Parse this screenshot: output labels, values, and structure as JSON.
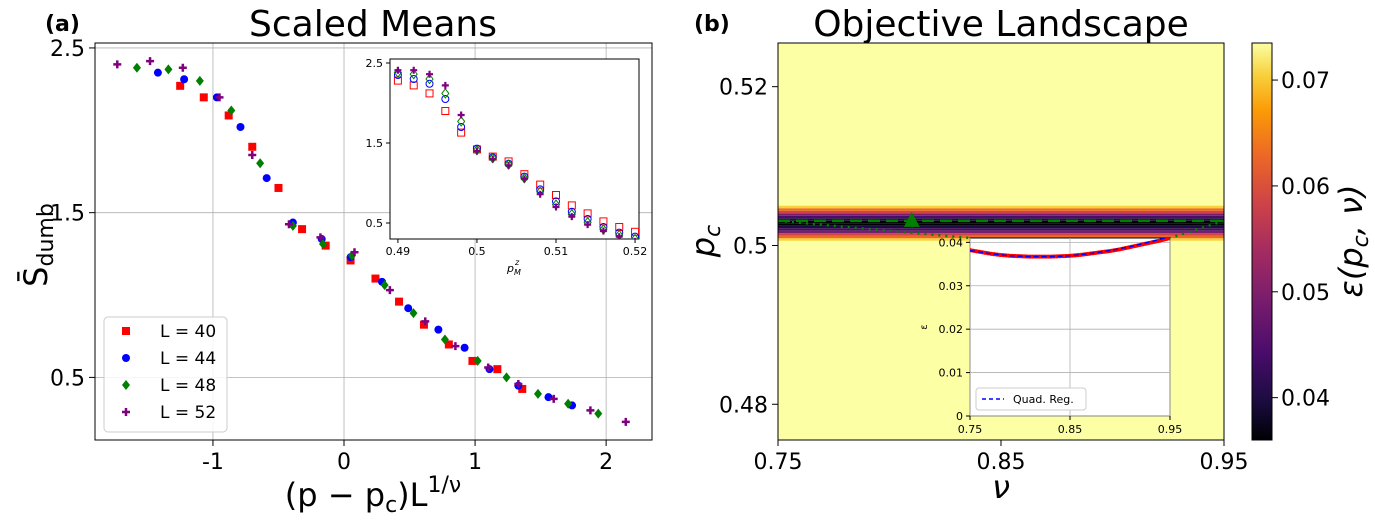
{
  "panel_a": {
    "label": "(a)",
    "title": "Scaled Means",
    "ylabel": "S̄",
    "ylabel_sub": "dumb",
    "xlabel_main": "(p − p",
    "xlabel_sub": "c",
    "xlabel_tail": ")L",
    "xlabel_sup": "1/ν"
  },
  "panel_b": {
    "label": "(b)",
    "title": "Objective Landscape",
    "xlabel": "ν",
    "ylabel_main": "p",
    "ylabel_sub": "c",
    "colorbar_label": "ε(p",
    "colorbar_label_sub": "c",
    "colorbar_label_tail": ", ν)"
  },
  "chart_data": [
    {
      "type": "scatter",
      "title": "Scaled Means",
      "xlabel": "(p − p_c)L^{1/ν}",
      "ylabel": "S̄_dumb",
      "xlim": [
        -1.9,
        2.35
      ],
      "ylim": [
        0.12,
        2.53
      ],
      "xticks": [
        -1,
        0,
        1,
        2
      ],
      "xtick_labels": [
        "-1",
        "0",
        "1",
        "2"
      ],
      "yticks": [
        0.5,
        1.5,
        2.5
      ],
      "ytick_labels": [
        "0.5",
        "1.5",
        "2.5"
      ],
      "grid": true,
      "legend_position": "lower-left",
      "series": [
        {
          "name": "L = 40",
          "color": "#ff0000",
          "marker": "square",
          "points": [
            [
              -1.25,
              2.27
            ],
            [
              -1.07,
              2.2
            ],
            [
              -0.88,
              2.09
            ],
            [
              -0.7,
              1.9
            ],
            [
              -0.5,
              1.65
            ],
            [
              -0.32,
              1.4
            ],
            [
              -0.14,
              1.3
            ],
            [
              0.05,
              1.21
            ],
            [
              0.24,
              1.1
            ],
            [
              0.42,
              0.96
            ],
            [
              0.61,
              0.82
            ],
            [
              0.8,
              0.7
            ],
            [
              0.98,
              0.6
            ],
            [
              1.17,
              0.55
            ],
            [
              1.36,
              0.43
            ]
          ]
        },
        {
          "name": "L = 44",
          "color": "#0000ff",
          "marker": "circle",
          "points": [
            [
              -1.42,
              2.35
            ],
            [
              -1.22,
              2.31
            ],
            [
              -0.97,
              2.2
            ],
            [
              -0.79,
              2.02
            ],
            [
              -0.59,
              1.71
            ],
            [
              -0.39,
              1.44
            ],
            [
              -0.17,
              1.34
            ],
            [
              0.05,
              1.23
            ],
            [
              0.29,
              1.08
            ],
            [
              0.49,
              0.92
            ],
            [
              0.72,
              0.79
            ],
            [
              0.92,
              0.68
            ],
            [
              1.11,
              0.55
            ],
            [
              1.33,
              0.45
            ],
            [
              1.56,
              0.38
            ],
            [
              1.74,
              0.33
            ]
          ]
        },
        {
          "name": "L = 48",
          "color": "#008000",
          "marker": "diamond",
          "points": [
            [
              -1.58,
              2.38
            ],
            [
              -1.34,
              2.37
            ],
            [
              -1.1,
              2.3
            ],
            [
              -0.86,
              2.12
            ],
            [
              -0.64,
              1.8
            ],
            [
              -0.39,
              1.42
            ],
            [
              -0.16,
              1.31
            ],
            [
              0.06,
              1.24
            ],
            [
              0.31,
              1.06
            ],
            [
              0.53,
              0.89
            ],
            [
              0.77,
              0.73
            ],
            [
              1.02,
              0.6
            ],
            [
              1.24,
              0.5
            ],
            [
              1.48,
              0.4
            ],
            [
              1.71,
              0.34
            ],
            [
              1.94,
              0.28
            ]
          ]
        },
        {
          "name": "L = 52",
          "color": "#800080",
          "marker": "plus",
          "points": [
            [
              -1.73,
              2.4
            ],
            [
              -1.48,
              2.42
            ],
            [
              -1.23,
              2.38
            ],
            [
              -0.95,
              2.2
            ],
            [
              -0.7,
              1.85
            ],
            [
              -0.42,
              1.43
            ],
            [
              -0.18,
              1.35
            ],
            [
              0.08,
              1.26
            ],
            [
              0.35,
              1.03
            ],
            [
              0.62,
              0.84
            ],
            [
              0.85,
              0.69
            ],
            [
              1.1,
              0.56
            ],
            [
              1.33,
              0.46
            ],
            [
              1.6,
              0.37
            ],
            [
              1.88,
              0.3
            ],
            [
              2.15,
              0.23
            ]
          ]
        }
      ]
    },
    {
      "type": "scatter",
      "role": "inset",
      "xlabel": "p_M^z",
      "xlim": [
        0.489,
        0.5205
      ],
      "ylim": [
        0.3,
        2.55
      ],
      "xticks": [
        0.49,
        0.5,
        0.51,
        0.52
      ],
      "xtick_labels": [
        "0.49",
        "0.5",
        "0.51",
        "0.52"
      ],
      "yticks": [
        0.5,
        1.5,
        2.5
      ],
      "ytick_labels": [
        "0.5",
        "1.5",
        "2.5"
      ],
      "grid": false,
      "series": [
        {
          "name": "",
          "color": "#ff0000",
          "marker": "square-open",
          "points": [
            [
              0.49,
              2.28
            ],
            [
              0.492,
              2.22
            ],
            [
              0.494,
              2.12
            ],
            [
              0.496,
              1.9
            ],
            [
              0.498,
              1.63
            ],
            [
              0.5,
              1.42
            ],
            [
              0.502,
              1.33
            ],
            [
              0.504,
              1.27
            ],
            [
              0.506,
              1.11
            ],
            [
              0.508,
              0.98
            ],
            [
              0.51,
              0.85
            ],
            [
              0.512,
              0.72
            ],
            [
              0.514,
              0.62
            ],
            [
              0.516,
              0.52
            ],
            [
              0.518,
              0.45
            ],
            [
              0.52,
              0.39
            ]
          ]
        },
        {
          "name": "",
          "color": "#0000ff",
          "marker": "circle-open",
          "points": [
            [
              0.49,
              2.35
            ],
            [
              0.492,
              2.3
            ],
            [
              0.494,
              2.24
            ],
            [
              0.496,
              2.05
            ],
            [
              0.498,
              1.7
            ],
            [
              0.5,
              1.43
            ],
            [
              0.502,
              1.32
            ],
            [
              0.504,
              1.24
            ],
            [
              0.506,
              1.08
            ],
            [
              0.508,
              0.92
            ],
            [
              0.51,
              0.77
            ],
            [
              0.512,
              0.64
            ],
            [
              0.514,
              0.55
            ],
            [
              0.516,
              0.45
            ],
            [
              0.518,
              0.38
            ],
            [
              0.52,
              0.33
            ]
          ]
        },
        {
          "name": "",
          "color": "#008000",
          "marker": "diamond-open",
          "points": [
            [
              0.49,
              2.38
            ],
            [
              0.492,
              2.36
            ],
            [
              0.494,
              2.3
            ],
            [
              0.496,
              2.12
            ],
            [
              0.498,
              1.77
            ],
            [
              0.5,
              1.41
            ],
            [
              0.502,
              1.31
            ],
            [
              0.504,
              1.23
            ],
            [
              0.506,
              1.06
            ],
            [
              0.508,
              0.89
            ],
            [
              0.51,
              0.73
            ],
            [
              0.512,
              0.61
            ],
            [
              0.514,
              0.51
            ],
            [
              0.516,
              0.42
            ],
            [
              0.518,
              0.35
            ],
            [
              0.52,
              0.3
            ]
          ]
        },
        {
          "name": "",
          "color": "#800080",
          "marker": "plus",
          "points": [
            [
              0.49,
              2.41
            ],
            [
              0.492,
              2.41
            ],
            [
              0.494,
              2.36
            ],
            [
              0.496,
              2.22
            ],
            [
              0.498,
              1.85
            ],
            [
              0.5,
              1.4
            ],
            [
              0.502,
              1.3
            ],
            [
              0.504,
              1.22
            ],
            [
              0.506,
              1.05
            ],
            [
              0.508,
              0.86
            ],
            [
              0.51,
              0.7
            ],
            [
              0.512,
              0.58
            ],
            [
              0.514,
              0.48
            ],
            [
              0.516,
              0.4
            ],
            [
              0.518,
              0.33
            ],
            [
              0.52,
              0.27
            ]
          ]
        }
      ]
    },
    {
      "type": "heatmap",
      "title": "Objective Landscape",
      "xlabel": "ν",
      "ylabel": "p_c",
      "xlim": [
        0.75,
        0.95
      ],
      "ylim": [
        0.4755,
        0.5255
      ],
      "xticks": [
        0.75,
        0.85,
        0.95
      ],
      "xtick_labels": [
        "0.75",
        "0.85",
        "0.95"
      ],
      "yticks": [
        0.48,
        0.5,
        0.52
      ],
      "ytick_labels": [
        "0.48",
        "0.5",
        "0.52"
      ],
      "colorbar": {
        "label": "ε(p_c, ν)",
        "range": [
          0.036,
          0.0735
        ],
        "ticks": [
          0.04,
          0.05,
          0.06,
          0.07
        ],
        "tick_labels": [
          "0.04",
          "0.05",
          "0.06",
          "0.07"
        ]
      },
      "band_center_pc": 0.5028,
      "band_halfwidth_pc": 0.0022,
      "background_value": 0.072,
      "minimum_marker": {
        "nu": 0.81,
        "pc": 0.5031,
        "color": "#008000"
      },
      "dashed_line_pc": 0.5031
    },
    {
      "type": "line",
      "role": "inset",
      "ylabel": "ε",
      "xlim": [
        0.75,
        0.95
      ],
      "ylim": [
        0,
        0.041
      ],
      "xticks": [
        0.75,
        0.85,
        0.95
      ],
      "xtick_labels": [
        "0.75",
        "0.85",
        "0.95"
      ],
      "yticks": [
        0,
        0.01,
        0.02,
        0.03,
        0.04
      ],
      "ytick_labels": [
        "0",
        "0.01",
        "0.02",
        "0.03",
        "0.04"
      ],
      "grid": true,
      "legend_position": "lower-left",
      "series": [
        {
          "name": "",
          "color": "#ff0000",
          "style": "markers",
          "x": [
            0.75,
            0.76,
            0.77,
            0.78,
            0.79,
            0.8,
            0.81,
            0.82,
            0.83,
            0.84,
            0.85,
            0.86,
            0.87,
            0.88,
            0.89,
            0.9,
            0.91,
            0.92,
            0.93,
            0.94,
            0.95
          ],
          "y": [
            0.0382,
            0.0378,
            0.0374,
            0.0371,
            0.0369,
            0.0368,
            0.0367,
            0.0367,
            0.0367,
            0.0368,
            0.0369,
            0.0371,
            0.0374,
            0.0377,
            0.038,
            0.0384,
            0.0389,
            0.0394,
            0.0399,
            0.0404,
            0.041
          ]
        },
        {
          "name": "Quad. Reg.",
          "color": "#0000ff",
          "style": "dashed",
          "x": [
            0.75,
            0.77,
            0.79,
            0.81,
            0.83,
            0.85,
            0.87,
            0.89,
            0.91,
            0.93,
            0.95
          ],
          "y": [
            0.0381,
            0.0374,
            0.0369,
            0.0367,
            0.0367,
            0.0369,
            0.0374,
            0.0381,
            0.039,
            0.0401,
            0.0413
          ]
        }
      ]
    }
  ]
}
